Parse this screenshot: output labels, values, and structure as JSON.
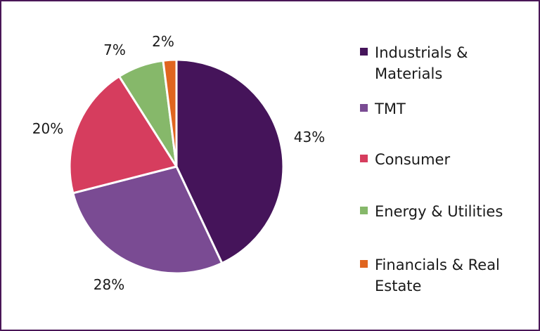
{
  "chart_data": {
    "type": "pie",
    "title": "",
    "categories": [
      "Industrials & Materials",
      "TMT",
      "Consumer",
      "Energy & Utilities",
      "Financials & Real Estate"
    ],
    "values": [
      43,
      28,
      20,
      7,
      2
    ],
    "labels": [
      "43%",
      "28%",
      "20%",
      "7%",
      "2%"
    ],
    "colors": [
      "#45145a",
      "#7a4b93",
      "#d63d5e",
      "#86b86a",
      "#e0651f"
    ],
    "legend_position": "right"
  }
}
